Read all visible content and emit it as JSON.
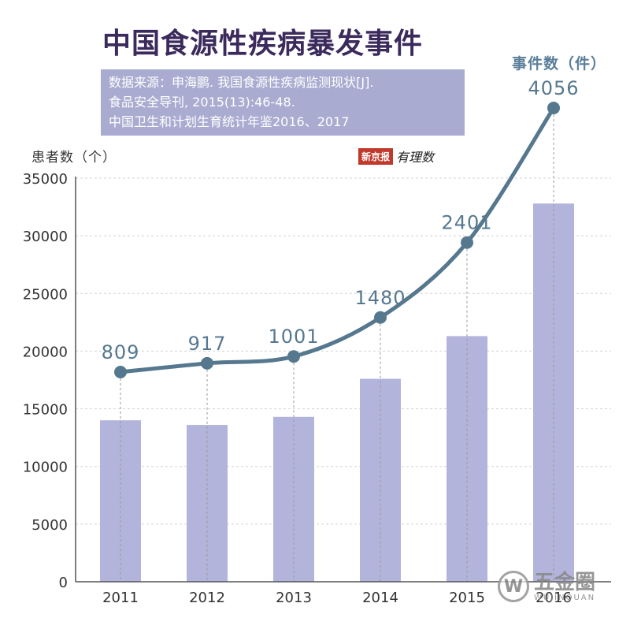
{
  "title": "中国食源性疾病暴发事件",
  "source_lines": [
    "数据来源：申海鹏. 我国食源性疾病监测现状[J].",
    "食品安全导刊, 2015(13):46-48.",
    "中国卫生和计划生育统计年鉴2016、2017"
  ],
  "logo": {
    "box_text": "新京报",
    "script_text": "有理数"
  },
  "watermark": {
    "icon_char": "W",
    "cn": "五金圈",
    "en": "WUJINQUAN"
  },
  "colors": {
    "bar": "#b2b4db",
    "line": "#56788f",
    "dot": "#56788f",
    "label": "#56788f",
    "source_bg": "#a9abd0"
  },
  "chart_data": {
    "type": "bar",
    "categories": [
      "2011",
      "2012",
      "2013",
      "2014",
      "2015",
      "2016"
    ],
    "ylabel": "患者数（个）",
    "ylim": [
      0,
      35000
    ],
    "yticks": [
      0,
      5000,
      10000,
      15000,
      20000,
      25000,
      30000,
      35000
    ],
    "grid": true,
    "series": [
      {
        "type": "bar",
        "values": [
          14000,
          13600,
          14300,
          17600,
          21300,
          32800
        ]
      },
      {
        "type": "line",
        "name": "事件数（件）",
        "values": [
          809,
          917,
          1001,
          1480,
          2401,
          4056
        ],
        "labels": [
          "809",
          "917",
          "1001",
          "1480",
          "2401",
          "4056"
        ]
      }
    ]
  }
}
